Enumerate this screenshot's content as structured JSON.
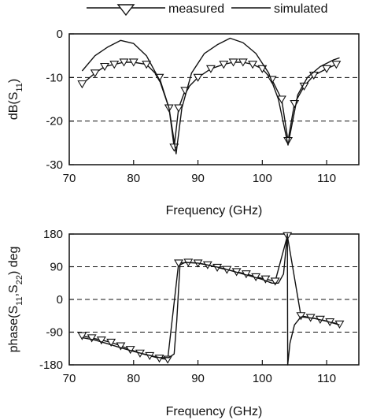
{
  "legend": {
    "measured_label": "measured",
    "simulated_label": "simulated"
  },
  "chart_data": [
    {
      "type": "line",
      "xlabel": "Frequency (GHz)",
      "ylabel_parts": [
        "dB(S",
        "11",
        ")"
      ],
      "xlim": [
        70,
        115
      ],
      "ylim": [
        -30,
        0
      ],
      "xticks": [
        70,
        80,
        90,
        100,
        110
      ],
      "yticks": [
        0,
        -10,
        -20,
        -30
      ],
      "dashed_gridlines_y": [
        -10,
        -20
      ],
      "series": [
        {
          "name": "measured",
          "marker": "triangle-down",
          "x": [
            72,
            74,
            75.5,
            77,
            78.5,
            80,
            82,
            84,
            85.5,
            86.3,
            87,
            88,
            90,
            92,
            94,
            95.5,
            97,
            98.5,
            100,
            101.5,
            103,
            104,
            105,
            106.5,
            108,
            110,
            111.5
          ],
          "y": [
            -11.5,
            -9,
            -7.5,
            -7,
            -6.5,
            -6.5,
            -7,
            -10,
            -17,
            -26,
            -17,
            -13,
            -10,
            -8,
            -7,
            -6.5,
            -6.5,
            -7,
            -8,
            -10.5,
            -15,
            -24.5,
            -16,
            -12,
            -9.5,
            -8,
            -7
          ]
        },
        {
          "name": "simulated",
          "x": [
            72,
            74,
            76,
            78,
            80,
            82,
            84,
            85.5,
            86.6,
            87.5,
            89,
            91,
            93,
            95,
            97,
            99,
            101,
            102.5,
            104,
            105.5,
            107,
            109,
            111,
            112
          ],
          "y": [
            -8.5,
            -5,
            -3,
            -1.5,
            -2.2,
            -5,
            -10.5,
            -17,
            -27.5,
            -17,
            -9,
            -4.5,
            -2.5,
            -1,
            -2,
            -4.5,
            -9,
            -15,
            -25.5,
            -14,
            -10,
            -7.5,
            -6,
            -5.5
          ]
        }
      ]
    },
    {
      "type": "line",
      "xlabel": "Frequency (GHz)",
      "ylabel_parts": [
        "phase(S",
        "11",
        ",S",
        "22",
        ") deg"
      ],
      "xlim": [
        70,
        115
      ],
      "ylim": [
        -180,
        180
      ],
      "xticks": [
        70,
        80,
        90,
        100,
        110
      ],
      "yticks": [
        180,
        90,
        0,
        -90,
        -180
      ],
      "dashed_gridlines_y": [
        90,
        0,
        -90
      ],
      "series": [
        {
          "name": "measured",
          "marker": "triangle-down",
          "x": [
            72,
            73.5,
            75,
            76.5,
            78,
            79.5,
            81,
            82.5,
            84,
            85.3,
            87,
            88.5,
            90,
            91.5,
            93,
            94.5,
            96,
            97.5,
            99,
            100.5,
            102,
            103.9,
            106,
            107.5,
            109,
            110.5,
            112
          ],
          "y": [
            -100,
            -106,
            -112,
            -118,
            -128,
            -138,
            -148,
            -155,
            -162,
            -165,
            100,
            102,
            100,
            95,
            88,
            82,
            76,
            70,
            62,
            56,
            50,
            175,
            -45,
            -50,
            -55,
            -62,
            -68
          ]
        },
        {
          "name": "simulated",
          "x": [
            72,
            74,
            76,
            78,
            80,
            82,
            84,
            85.5,
            86.3,
            86.7,
            87.2,
            88,
            90,
            92,
            94,
            96,
            98,
            100,
            101.5,
            102.5,
            103.3,
            103.9,
            103.95,
            104.3,
            105,
            106,
            108,
            110,
            112
          ],
          "y": [
            -105,
            -112,
            -122,
            -133,
            -143,
            -152,
            -160,
            -160,
            -150,
            -60,
            95,
            102,
            100,
            93,
            85,
            75,
            65,
            55,
            45,
            45,
            70,
            180,
            -180,
            -120,
            -70,
            -48,
            -52,
            -60,
            -70
          ]
        }
      ]
    }
  ]
}
